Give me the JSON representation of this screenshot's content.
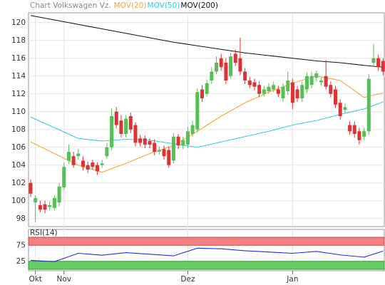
{
  "chart_data": [
    {
      "type": "candlestick",
      "title": "Chart Volkswagen Vz.",
      "up_color": "#55c055",
      "down_color": "#dd3333",
      "grid": true,
      "categories": [
        null,
        "Okt",
        null,
        null,
        null,
        null,
        null,
        "Nov",
        null,
        null,
        null,
        null,
        null,
        null,
        null,
        null,
        null,
        null,
        null,
        null,
        null,
        null,
        null,
        null,
        null,
        null,
        null,
        null,
        null,
        null,
        null,
        null,
        null,
        "Dez",
        null,
        null,
        null,
        null,
        null,
        null,
        null,
        null,
        null,
        null,
        null,
        null,
        null,
        null,
        null,
        null,
        null,
        null,
        null,
        null,
        null,
        "Jan",
        null,
        null,
        null,
        null,
        null,
        null,
        null,
        null,
        null,
        null,
        null,
        null,
        null,
        null,
        null,
        null,
        null,
        null,
        null
      ],
      "open": [
        102,
        99.8,
        99.5,
        99.6,
        99.3,
        99.2,
        99.8,
        101.5,
        104.5,
        105,
        105,
        104.5,
        104,
        104.3,
        104,
        104,
        105,
        106,
        110,
        109,
        107.5,
        109.5,
        108.5,
        107,
        107,
        106.7,
        106.5,
        105.5,
        105.8,
        105.7,
        104.5,
        107.2,
        106.2,
        106.3,
        107.5,
        108,
        112.5,
        112,
        113.5,
        114.5,
        116,
        115.5,
        114,
        116.5,
        116,
        114.5,
        113.5,
        113.3,
        113,
        112,
        112.3,
        112.5,
        112.5,
        111.5,
        112.3,
        113.3,
        112.5,
        111.5,
        112.5,
        113,
        113.8,
        113.3,
        114,
        113,
        112.5,
        111,
        110.2,
        108.5,
        108.5,
        107.8,
        107.2,
        107.8,
        115.5,
        116,
        115.7
      ],
      "high": [
        102.4,
        100.6,
        100,
        100,
        99.9,
        100.6,
        102,
        104.3,
        106.3,
        105.5,
        105.8,
        105,
        104.4,
        104.6,
        104.3,
        104.6,
        106.5,
        110.4,
        110.5,
        109.6,
        109.6,
        109.9,
        108.8,
        107.4,
        107.3,
        107,
        106.9,
        106.1,
        106.2,
        106.1,
        107.6,
        107.5,
        107.2,
        108.3,
        109,
        112.6,
        113,
        113.6,
        115,
        116.2,
        116.5,
        116,
        116.6,
        117,
        118.3,
        114.9,
        113.9,
        113.7,
        113.4,
        112.9,
        113.2,
        113.4,
        112.9,
        113.2,
        114.5,
        113.7,
        112.9,
        113.4,
        114.4,
        114.5,
        114.6,
        113.8,
        115.8,
        113.4,
        112.9,
        111.4,
        110.9,
        108.9,
        108.9,
        108.2,
        108.2,
        114.2,
        117.6,
        116.4,
        116
      ],
      "low": [
        100.4,
        97.6,
        98.7,
        98.6,
        98.9,
        98.9,
        99.4,
        101.2,
        104.1,
        103.7,
        104.6,
        103.4,
        103.1,
        103.5,
        102.9,
        103.7,
        104.7,
        105.7,
        108.1,
        107.1,
        107.1,
        107.6,
        106.1,
        106.1,
        105.9,
        105.9,
        105.1,
        105.2,
        104.6,
        103.7,
        104.2,
        105.8,
        105.8,
        105.9,
        107.2,
        107.7,
        111.1,
        111.7,
        113.1,
        114.2,
        114.6,
        113.1,
        113.7,
        115.1,
        114.1,
        113.1,
        112.6,
        112.4,
        111.6,
        111.7,
        112,
        112.2,
        111.6,
        111.1,
        111.9,
        110.3,
        111.1,
        111.1,
        112.1,
        112.6,
        113.4,
        112.9,
        112.5,
        111.6,
        110.4,
        109.1,
        109.8,
        107.4,
        107.1,
        106.3,
        106.8,
        107.4,
        115.1,
        114.6,
        114.1
      ],
      "close": [
        100.8,
        100.3,
        99,
        99,
        99.5,
        100.3,
        101.6,
        103.8,
        105.5,
        104,
        105.3,
        103.8,
        103.5,
        103.8,
        103.3,
        104.2,
        106,
        109.5,
        108.5,
        107.5,
        109.2,
        108,
        106.5,
        106.5,
        106.3,
        106.3,
        105.5,
        105.7,
        105,
        104,
        107.2,
        106.2,
        106.8,
        107.8,
        108.5,
        112.2,
        111.5,
        113.2,
        114.5,
        115.5,
        115,
        113.5,
        116.2,
        115.5,
        114.5,
        113.5,
        113,
        112.8,
        112,
        112.5,
        112.8,
        113,
        112,
        112.8,
        113.5,
        111,
        111.5,
        113,
        114,
        114,
        114.3,
        113.5,
        112.8,
        112,
        110.8,
        109.5,
        110.5,
        107.8,
        107.5,
        106.8,
        107.8,
        113.7,
        116,
        115,
        114.5
      ],
      "series": [
        {
          "name": "MOV(20)",
          "color": "#f0a830",
          "x": [
            0,
            5,
            10,
            15,
            20,
            25,
            30,
            35,
            40,
            45,
            50,
            55,
            60,
            65,
            70,
            74
          ],
          "values": [
            106.6,
            105.3,
            104,
            103.2,
            104.2,
            105.3,
            106.2,
            107.8,
            109.5,
            111,
            112.2,
            113.2,
            114,
            113.5,
            111.6,
            112.1
          ]
        },
        {
          "name": "MOV(50)",
          "color": "#33ccdd",
          "x": [
            0,
            5,
            10,
            15,
            20,
            25,
            30,
            35,
            40,
            45,
            50,
            55,
            60,
            65,
            70,
            74
          ],
          "values": [
            109.4,
            108.2,
            107,
            106.7,
            106.9,
            106.8,
            106.4,
            106,
            106.6,
            107.2,
            107.8,
            108.5,
            109,
            109.7,
            110.3,
            111.1
          ]
        },
        {
          "name": "MOV(200)",
          "color": "#111111",
          "x": [
            0,
            5,
            10,
            15,
            20,
            25,
            30,
            35,
            40,
            45,
            50,
            55,
            60,
            65,
            70,
            74
          ],
          "values": [
            120.8,
            120.3,
            119.8,
            119.3,
            118.8,
            118.3,
            117.8,
            117.4,
            117,
            116.6,
            116.3,
            116,
            115.7,
            115.5,
            115.2,
            115
          ]
        }
      ],
      "ylim": [
        97.1,
        121.1
      ],
      "yticks": [
        98,
        100,
        102,
        104,
        106,
        108,
        110,
        112,
        114,
        116,
        118,
        120
      ]
    },
    {
      "type": "line",
      "title": "RSI(14)",
      "color": "#2233cc",
      "upper_band_color": "#f28080",
      "lower_band_color": "#66cc66",
      "x": [
        0,
        5,
        10,
        15,
        20,
        25,
        30,
        35,
        40,
        45,
        50,
        55,
        60,
        65,
        70,
        74
      ],
      "values": [
        28,
        24,
        50,
        44,
        52,
        47,
        42,
        66,
        64,
        58,
        54,
        50,
        56,
        45,
        38,
        57
      ],
      "ylim": [
        0,
        100
      ],
      "yticks": [
        25,
        75
      ]
    }
  ]
}
